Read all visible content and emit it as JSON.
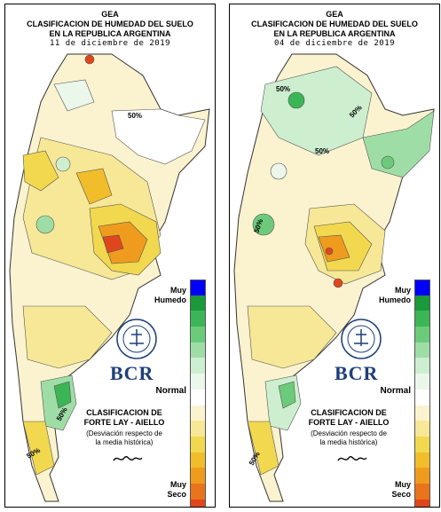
{
  "panels": [
    {
      "org": "GEA",
      "title_line1": "CLASIFICACION DE HUMEDAD DEL SUELO",
      "title_line2": "EN LA REPUBLICA ARGENTINA",
      "date": "11 de diciembre de 2019",
      "contour_labels": [
        "50%",
        "50%",
        "50%"
      ]
    },
    {
      "org": "GEA",
      "title_line1": "CLASIFICACION DE HUMEDAD DEL SUELO",
      "title_line2": "EN LA REPUBLICA ARGENTINA",
      "date": "04 de diciembre de 2019",
      "contour_labels": [
        "50%",
        "50%",
        "50%",
        "50%",
        "50%"
      ]
    }
  ],
  "legend": {
    "muy": "Muy",
    "humedo": "Humedo",
    "normal": "Normal",
    "seco": "Seco",
    "classification_line1": "CLASIFICACION DE",
    "classification_line2": "FORTE LAY - AIELLO",
    "description_line1": "(Desviación respecto de",
    "description_line2": "la media histórica)",
    "logo_text": "BCR",
    "seal_text": "BOLSA DE COMERCIO DE ROSARIO",
    "colors": [
      "#0000ff",
      "#1a9a3a",
      "#3cb556",
      "#6ccb7b",
      "#9fdda6",
      "#cdeecf",
      "#eaf7ea",
      "#ffffff",
      "#fbf3cf",
      "#f6e896",
      "#f1d84e",
      "#f2bd2b",
      "#ef9c1e",
      "#e9741b",
      "#e0461c",
      "#d6001c"
    ]
  }
}
